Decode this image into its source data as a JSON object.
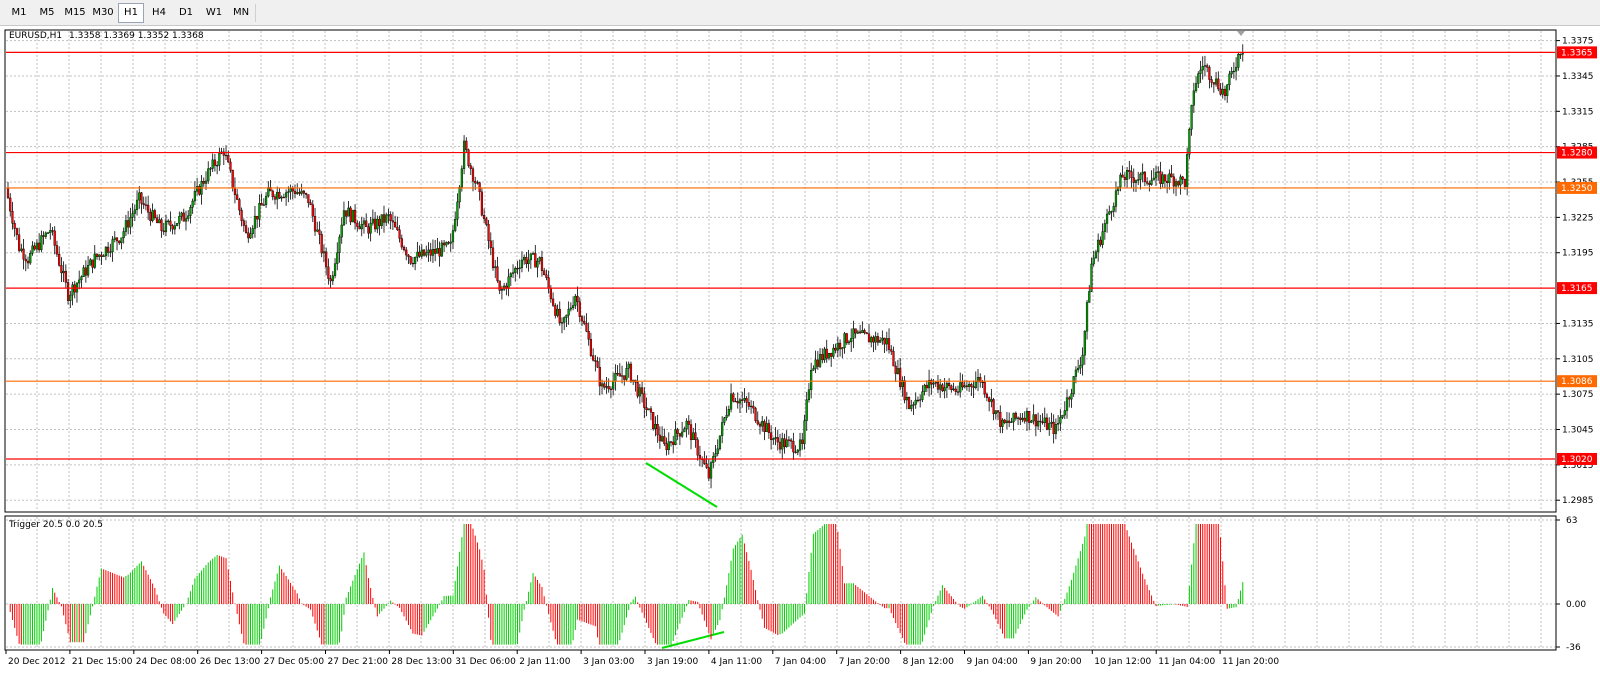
{
  "toolbar": {
    "timeframes": [
      "M1",
      "M5",
      "M15",
      "M30",
      "H1",
      "H4",
      "D1",
      "W1",
      "MN"
    ],
    "active": "H1"
  },
  "main_chart": {
    "symbol_label": "EURUSD,H1",
    "ohlc_text": "1.3358 1.3369 1.3352 1.3368",
    "y_ticks": [
      "1.3375",
      "1.3345",
      "1.3315",
      "1.3285",
      "1.3255",
      "1.3225",
      "1.3195",
      "1.3135",
      "1.3105",
      "1.3075",
      "1.3045",
      "1.3015",
      "1.2985"
    ],
    "levels": [
      {
        "price": "1.3365",
        "color": "#ff0000",
        "label_bg": "#ff0000"
      },
      {
        "price": "1.3280",
        "color": "#ff0000",
        "label_bg": "#ff0000"
      },
      {
        "price": "1.3250",
        "color": "#ff6a00",
        "label_bg": "#ff6a00"
      },
      {
        "price": "1.3165",
        "color": "#ff0000",
        "label_bg": "#ff0000"
      },
      {
        "price": "1.3086",
        "color": "#ff6a00",
        "label_bg": "#ff6a00"
      },
      {
        "price": "1.3020",
        "color": "#ff0000",
        "label_bg": "#ff0000"
      }
    ]
  },
  "indicator": {
    "label": "Trigger 20.5 0.0 20.5",
    "y_ticks": [
      "63",
      "0.00",
      "-36"
    ],
    "up_color": "#00cc00",
    "down_color": "#ff0000"
  },
  "x_axis_labels": [
    "20 Dec 2012",
    "21 Dec 15:00",
    "24 Dec 08:00",
    "26 Dec 13:00",
    "27 Dec 05:00",
    "27 Dec 21:00",
    "28 Dec 13:00",
    "31 Dec 06:00",
    "2 Jan 11:00",
    "3 Jan 03:00",
    "3 Jan 19:00",
    "4 Jan 11:00",
    "7 Jan 04:00",
    "7 Jan 20:00",
    "8 Jan 12:00",
    "9 Jan 04:00",
    "9 Jan 20:00",
    "10 Jan 12:00",
    "11 Jan 04:00",
    "11 Jan 20:00"
  ],
  "colors": {
    "bull_candle": "#00a000",
    "bear_candle": "#ff0000",
    "grid": "#c0c0c0",
    "divergence_line": "#00dd00"
  },
  "chart_data": {
    "type": "candlestick",
    "path_points": [
      [
        0,
        1.325
      ],
      [
        6,
        1.32
      ],
      [
        10,
        1.319
      ],
      [
        20,
        1.3215
      ],
      [
        28,
        1.316
      ],
      [
        40,
        1.319
      ],
      [
        52,
        1.321
      ],
      [
        60,
        1.324
      ],
      [
        70,
        1.3215
      ],
      [
        80,
        1.3225
      ],
      [
        90,
        1.326
      ],
      [
        98,
        1.3282
      ],
      [
        108,
        1.321
      ],
      [
        118,
        1.3245
      ],
      [
        130,
        1.3248
      ],
      [
        136,
        1.324
      ],
      [
        146,
        1.317
      ],
      [
        152,
        1.3232
      ],
      [
        162,
        1.3215
      ],
      [
        172,
        1.3225
      ],
      [
        182,
        1.319
      ],
      [
        192,
        1.3195
      ],
      [
        200,
        1.32
      ],
      [
        206,
        1.3285
      ],
      [
        212,
        1.325
      ],
      [
        222,
        1.316
      ],
      [
        232,
        1.319
      ],
      [
        240,
        1.3188
      ],
      [
        250,
        1.313
      ],
      [
        256,
        1.316
      ],
      [
        268,
        1.308
      ],
      [
        280,
        1.3095
      ],
      [
        296,
        1.303
      ],
      [
        306,
        1.305
      ],
      [
        316,
        1.3005
      ],
      [
        326,
        1.3075
      ],
      [
        334,
        1.3065
      ],
      [
        346,
        1.3035
      ],
      [
        358,
        1.303
      ],
      [
        362,
        1.31
      ],
      [
        380,
        1.3125
      ],
      [
        396,
        1.312
      ],
      [
        406,
        1.3065
      ],
      [
        416,
        1.3085
      ],
      [
        428,
        1.3078
      ],
      [
        438,
        1.3088
      ],
      [
        448,
        1.3048
      ],
      [
        458,
        1.3058
      ],
      [
        472,
        1.3045
      ],
      [
        478,
        1.3075
      ],
      [
        484,
        1.311
      ],
      [
        488,
        1.3185
      ],
      [
        496,
        1.323
      ],
      [
        502,
        1.326
      ],
      [
        512,
        1.3258
      ],
      [
        524,
        1.3258
      ],
      [
        530,
        1.3255
      ],
      [
        534,
        1.3335
      ],
      [
        538,
        1.3355
      ],
      [
        548,
        1.333
      ],
      [
        555,
        1.3368
      ]
    ]
  }
}
